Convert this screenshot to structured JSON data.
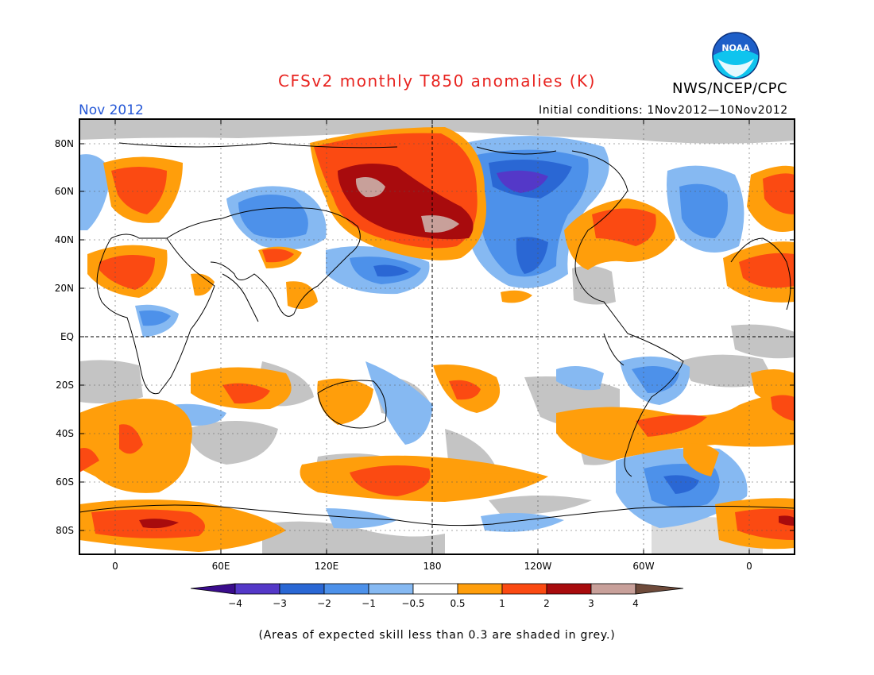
{
  "header": {
    "title": "CFSv2 monthly T850 anomalies (K)",
    "period": "Nov 2012",
    "agency": "NWS/NCEP/CPC",
    "initial_conditions": "Initial conditions: 1Nov2012—10Nov2012",
    "logo_text": "NOAA"
  },
  "map": {
    "lat_labels": [
      "80N",
      "60N",
      "40N",
      "20N",
      "EQ",
      "20S",
      "40S",
      "60S",
      "80S"
    ],
    "lon_labels": [
      "0",
      "60E",
      "120E",
      "180",
      "120W",
      "60W",
      "0"
    ]
  },
  "colorbar": {
    "tick_labels": [
      "−4",
      "−3",
      "−2",
      "−1",
      "−0.5",
      "0.5",
      "1",
      "2",
      "3",
      "4"
    ],
    "colors": {
      "lt_-4": "#3a0c8c",
      "-4_-3": "#5438c8",
      "-3_-2": "#2a67d4",
      "-2_-1": "#4d91ea",
      "-1_-0.5": "#86b9f2",
      "-0.5_0.5": "#ffffff",
      "0.5_1": "#ff9e0b",
      "1_2": "#fb4a12",
      "2_3": "#a80b0d",
      "3_4": "#c8a09a",
      "gt_4": "#6e4a3a"
    }
  },
  "colors": {
    "low_skill": "#c4c4c4",
    "title": "#e8231f",
    "period": "#2457d6"
  },
  "footnote": "(Areas of expected skill less than 0.3 are shaded in grey.)"
}
